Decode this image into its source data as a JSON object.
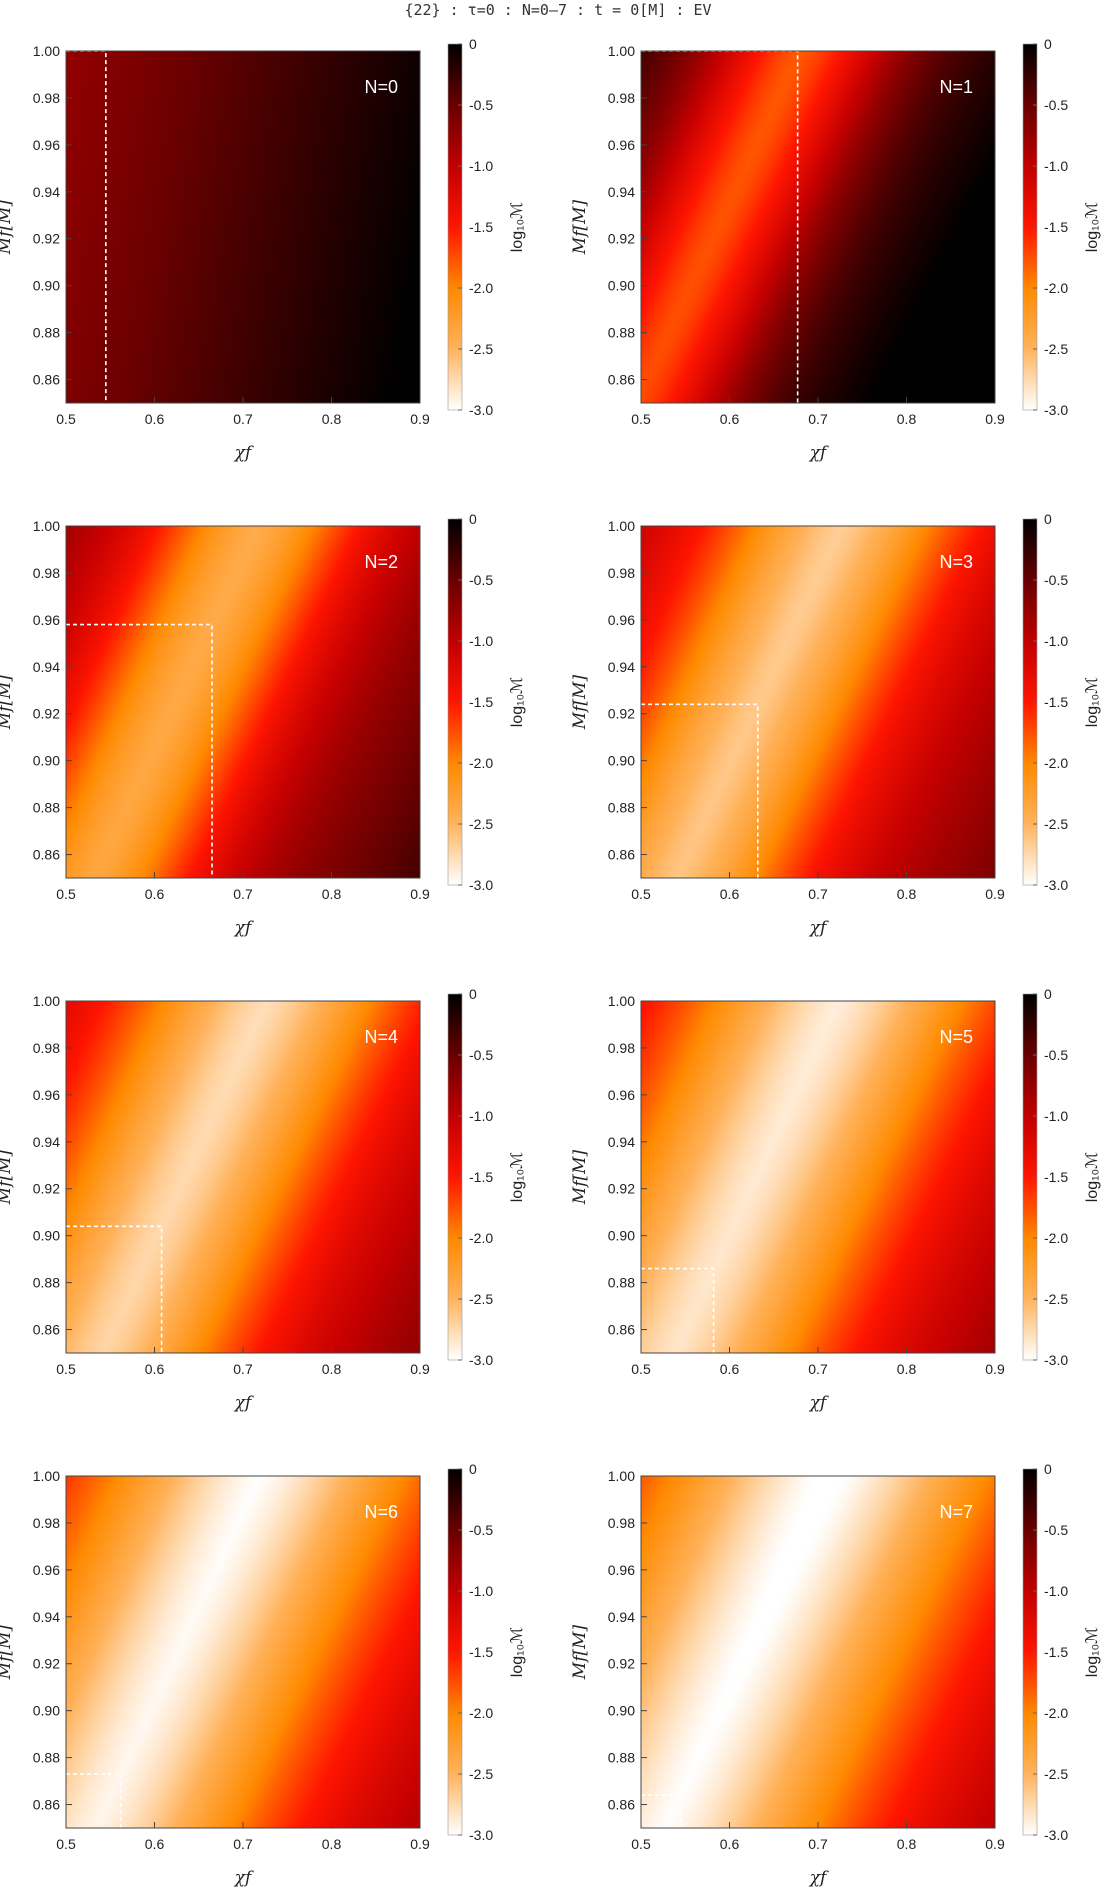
{
  "figure": {
    "title": "{22} : τ=0 : N=0–7 : t = 0[M] : EV"
  },
  "chart_data": [
    {
      "type": "heatmap",
      "panel_label": "N=0",
      "xlabel": "χf",
      "ylabel": "Mf[M]",
      "colorbar_label": "log₁₀ℳ",
      "xlim": [
        0.5,
        0.9
      ],
      "ylim": [
        0.85,
        1.0
      ],
      "clim": [
        -3.0,
        0
      ],
      "x_ticks": [
        "0.5",
        "0.6",
        "0.7",
        "0.8",
        "0.9"
      ],
      "y_ticks": [
        "0.86",
        "0.88",
        "0.90",
        "0.92",
        "0.94",
        "0.96",
        "0.98",
        "1.00"
      ],
      "colorbar_ticks": [
        "0",
        "-0.5",
        "-1.0",
        "-1.5",
        "-2.0",
        "-2.5",
        "-3.0"
      ],
      "colormap": [
        "#ffffff",
        "#ff8a00",
        "#ff1500",
        "#8a0000",
        "#000000"
      ],
      "approx_min_log10_mismatch": -0.75,
      "min_point": {
        "chi_f": 0.5,
        "M_f": 1.0
      },
      "dashed_box": {
        "chi_f_max": 0.545,
        "M_f_max": 1.0
      }
    },
    {
      "type": "heatmap",
      "panel_label": "N=1",
      "xlabel": "χf",
      "ylabel": "Mf[M]",
      "colorbar_label": "log₁₀ℳ",
      "xlim": [
        0.5,
        0.9
      ],
      "ylim": [
        0.85,
        1.0
      ],
      "clim": [
        -3.0,
        0
      ],
      "x_ticks": [
        "0.5",
        "0.6",
        "0.7",
        "0.8",
        "0.9"
      ],
      "y_ticks": [
        "0.86",
        "0.88",
        "0.90",
        "0.92",
        "0.94",
        "0.96",
        "0.98",
        "1.00"
      ],
      "colorbar_ticks": [
        "0",
        "-0.5",
        "-1.0",
        "-1.5",
        "-2.0",
        "-2.5",
        "-3.0"
      ],
      "colormap": [
        "#ffffff",
        "#ff8a00",
        "#ff1500",
        "#8a0000",
        "#000000"
      ],
      "approx_min_log10_mismatch": -1.8,
      "min_point": {
        "chi_f": 0.68,
        "M_f": 1.0
      },
      "dashed_box": {
        "chi_f_max": 0.677,
        "M_f_max": 1.0
      }
    },
    {
      "type": "heatmap",
      "panel_label": "N=2",
      "xlabel": "χf",
      "ylabel": "Mf[M]",
      "colorbar_label": "log₁₀ℳ",
      "xlim": [
        0.5,
        0.9
      ],
      "ylim": [
        0.85,
        1.0
      ],
      "clim": [
        -3.0,
        0
      ],
      "x_ticks": [
        "0.5",
        "0.6",
        "0.7",
        "0.8",
        "0.9"
      ],
      "y_ticks": [
        "0.86",
        "0.88",
        "0.90",
        "0.92",
        "0.94",
        "0.96",
        "0.98",
        "1.00"
      ],
      "colorbar_ticks": [
        "0",
        "-0.5",
        "-1.0",
        "-1.5",
        "-2.0",
        "-2.5",
        "-3.0"
      ],
      "colormap": [
        "#ffffff",
        "#ff8a00",
        "#ff1500",
        "#8a0000",
        "#000000"
      ],
      "approx_min_log10_mismatch": -2.4,
      "min_point": {
        "chi_f": 0.665,
        "M_f": 0.958
      },
      "dashed_box": {
        "chi_f_max": 0.665,
        "M_f_max": 0.958
      }
    },
    {
      "type": "heatmap",
      "panel_label": "N=3",
      "xlabel": "χf",
      "ylabel": "Mf[M]",
      "colorbar_label": "log₁₀ℳ",
      "xlim": [
        0.5,
        0.9
      ],
      "ylim": [
        0.85,
        1.0
      ],
      "clim": [
        -3.0,
        0
      ],
      "x_ticks": [
        "0.5",
        "0.6",
        "0.7",
        "0.8",
        "0.9"
      ],
      "y_ticks": [
        "0.86",
        "0.88",
        "0.90",
        "0.92",
        "0.94",
        "0.96",
        "0.98",
        "1.00"
      ],
      "colorbar_ticks": [
        "0",
        "-0.5",
        "-1.0",
        "-1.5",
        "-2.0",
        "-2.5",
        "-3.0"
      ],
      "colormap": [
        "#ffffff",
        "#ff8a00",
        "#ff1500",
        "#8a0000",
        "#000000"
      ],
      "approx_min_log10_mismatch": -2.65,
      "min_point": {
        "chi_f": 0.632,
        "M_f": 0.924
      },
      "dashed_box": {
        "chi_f_max": 0.632,
        "M_f_max": 0.924
      }
    },
    {
      "type": "heatmap",
      "panel_label": "N=4",
      "xlabel": "χf",
      "ylabel": "Mf[M]",
      "colorbar_label": "log₁₀ℳ",
      "xlim": [
        0.5,
        0.9
      ],
      "ylim": [
        0.85,
        1.0
      ],
      "clim": [
        -3.0,
        0
      ],
      "x_ticks": [
        "0.5",
        "0.6",
        "0.7",
        "0.8",
        "0.9"
      ],
      "y_ticks": [
        "0.86",
        "0.88",
        "0.90",
        "0.92",
        "0.94",
        "0.96",
        "0.98",
        "1.00"
      ],
      "colorbar_ticks": [
        "0",
        "-0.5",
        "-1.0",
        "-1.5",
        "-2.0",
        "-2.5",
        "-3.0"
      ],
      "colormap": [
        "#ffffff",
        "#ff8a00",
        "#ff1500",
        "#8a0000",
        "#000000"
      ],
      "approx_min_log10_mismatch": -2.75,
      "min_point": {
        "chi_f": 0.608,
        "M_f": 0.904
      },
      "dashed_box": {
        "chi_f_max": 0.608,
        "M_f_max": 0.904
      }
    },
    {
      "type": "heatmap",
      "panel_label": "N=5",
      "xlabel": "χf",
      "ylabel": "Mf[M]",
      "colorbar_label": "log₁₀ℳ",
      "xlim": [
        0.5,
        0.9
      ],
      "ylim": [
        0.85,
        1.0
      ],
      "clim": [
        -3.0,
        0
      ],
      "x_ticks": [
        "0.5",
        "0.6",
        "0.7",
        "0.8",
        "0.9"
      ],
      "y_ticks": [
        "0.86",
        "0.88",
        "0.90",
        "0.92",
        "0.94",
        "0.96",
        "0.98",
        "1.00"
      ],
      "colorbar_ticks": [
        "0",
        "-0.5",
        "-1.0",
        "-1.5",
        "-2.0",
        "-2.5",
        "-3.0"
      ],
      "colormap": [
        "#ffffff",
        "#ff8a00",
        "#ff1500",
        "#8a0000",
        "#000000"
      ],
      "approx_min_log10_mismatch": -2.85,
      "min_point": {
        "chi_f": 0.582,
        "M_f": 0.886
      },
      "dashed_box": {
        "chi_f_max": 0.582,
        "M_f_max": 0.886
      }
    },
    {
      "type": "heatmap",
      "panel_label": "N=6",
      "xlabel": "χf",
      "ylabel": "Mf[M]",
      "colorbar_label": "log₁₀ℳ",
      "xlim": [
        0.5,
        0.9
      ],
      "ylim": [
        0.85,
        1.0
      ],
      "clim": [
        -3.0,
        0
      ],
      "x_ticks": [
        "0.5",
        "0.6",
        "0.7",
        "0.8",
        "0.9"
      ],
      "y_ticks": [
        "0.86",
        "0.88",
        "0.90",
        "0.92",
        "0.94",
        "0.96",
        "0.98",
        "1.00"
      ],
      "colorbar_ticks": [
        "0",
        "-0.5",
        "-1.0",
        "-1.5",
        "-2.0",
        "-2.5",
        "-3.0"
      ],
      "colormap": [
        "#ffffff",
        "#ff8a00",
        "#ff1500",
        "#8a0000",
        "#000000"
      ],
      "approx_min_log10_mismatch": -2.95,
      "min_point": {
        "chi_f": 0.562,
        "M_f": 0.873
      },
      "dashed_box": {
        "chi_f_max": 0.562,
        "M_f_max": 0.873
      }
    },
    {
      "type": "heatmap",
      "panel_label": "N=7",
      "xlabel": "χf",
      "ylabel": "Mf[M]",
      "colorbar_label": "log₁₀ℳ",
      "xlim": [
        0.5,
        0.9
      ],
      "ylim": [
        0.85,
        1.0
      ],
      "clim": [
        -3.0,
        0
      ],
      "x_ticks": [
        "0.5",
        "0.6",
        "0.7",
        "0.8",
        "0.9"
      ],
      "y_ticks": [
        "0.86",
        "0.88",
        "0.90",
        "0.92",
        "0.94",
        "0.96",
        "0.98",
        "1.00"
      ],
      "colorbar_ticks": [
        "0",
        "-0.5",
        "-1.0",
        "-1.5",
        "-2.0",
        "-2.5",
        "-3.0"
      ],
      "colormap": [
        "#ffffff",
        "#ff8a00",
        "#ff1500",
        "#8a0000",
        "#000000"
      ],
      "approx_min_log10_mismatch": -3.0,
      "min_point": {
        "chi_f": 0.545,
        "M_f": 0.864
      },
      "dashed_box": {
        "chi_f_max": 0.545,
        "M_f_max": 0.864
      }
    }
  ]
}
